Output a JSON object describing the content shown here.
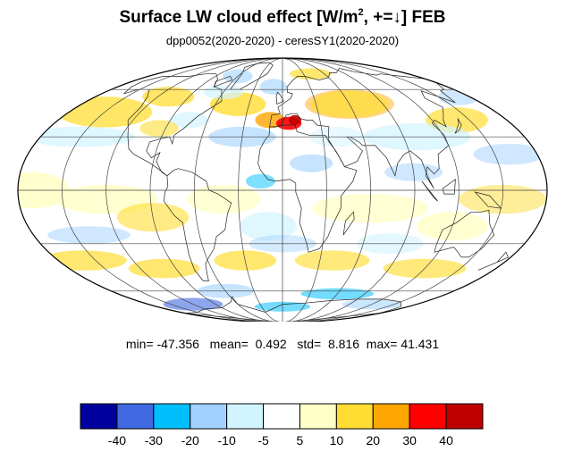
{
  "title": {
    "prefix": "Surface LW cloud effect [W/m",
    "sup": "2",
    "suffix": ", +=↓]  FEB"
  },
  "subtitle": "dpp0052(2020-2020) - ceresSY1(2020-2020)",
  "stats": {
    "min_label": "min=",
    "min": "-47.356",
    "mean_label": "mean=",
    "mean": "0.492",
    "std_label": "std=",
    "std": "8.816",
    "max_label": "max=",
    "max": "41.431"
  },
  "map": {
    "projection": "mollweide",
    "center_lon": 0,
    "graticule": true
  },
  "colorbar": {
    "colors": [
      "#00009e",
      "#4169e1",
      "#00bfff",
      "#a0d2ff",
      "#d2f4ff",
      "#ffffff",
      "#ffffc8",
      "#ffdd33",
      "#ffa500",
      "#ff0000",
      "#be0000"
    ],
    "tick_labels": [
      "-40",
      "-30",
      "-20",
      "-10",
      "-5",
      "5",
      "10",
      "20",
      "30",
      "40"
    ]
  }
}
